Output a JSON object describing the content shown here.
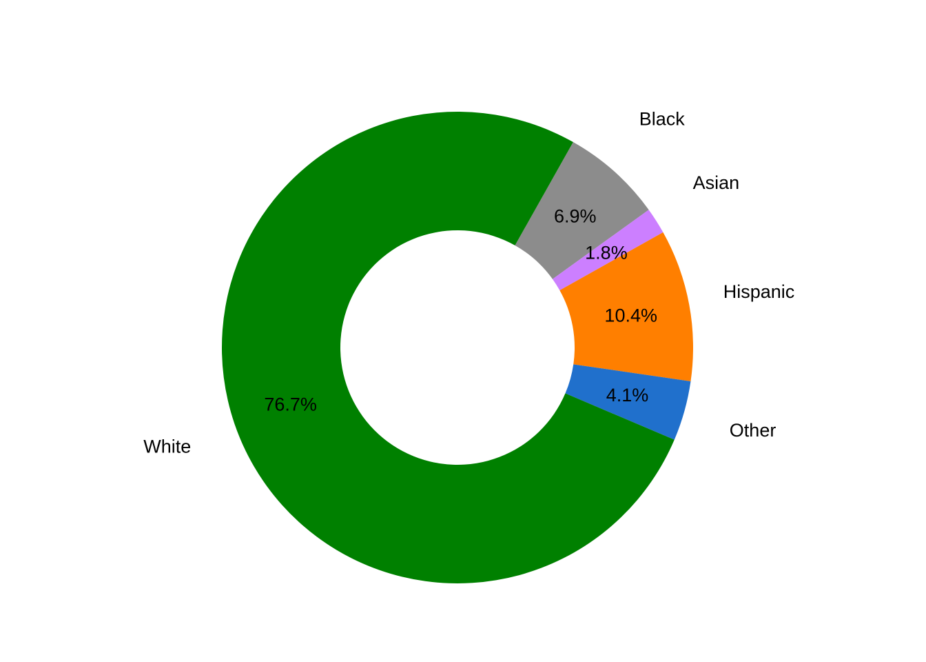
{
  "chart_data": {
    "type": "pie",
    "donut": true,
    "title": "",
    "legend": "none",
    "slices": [
      {
        "label": "Black",
        "value": 6.9,
        "value_label": "6.9%",
        "color": "#8C8C8C"
      },
      {
        "label": "Asian",
        "value": 1.8,
        "value_label": "1.8%",
        "color": "#CC7FFF"
      },
      {
        "label": "Hispanic",
        "value": 10.4,
        "value_label": "10.4%",
        "color": "#FF7F00"
      },
      {
        "label": "Other",
        "value": 4.1,
        "value_label": "4.1%",
        "color": "#2070CC"
      },
      {
        "label": "White",
        "value": 76.7,
        "value_label": "76.7%",
        "color": "#008000"
      }
    ]
  }
}
